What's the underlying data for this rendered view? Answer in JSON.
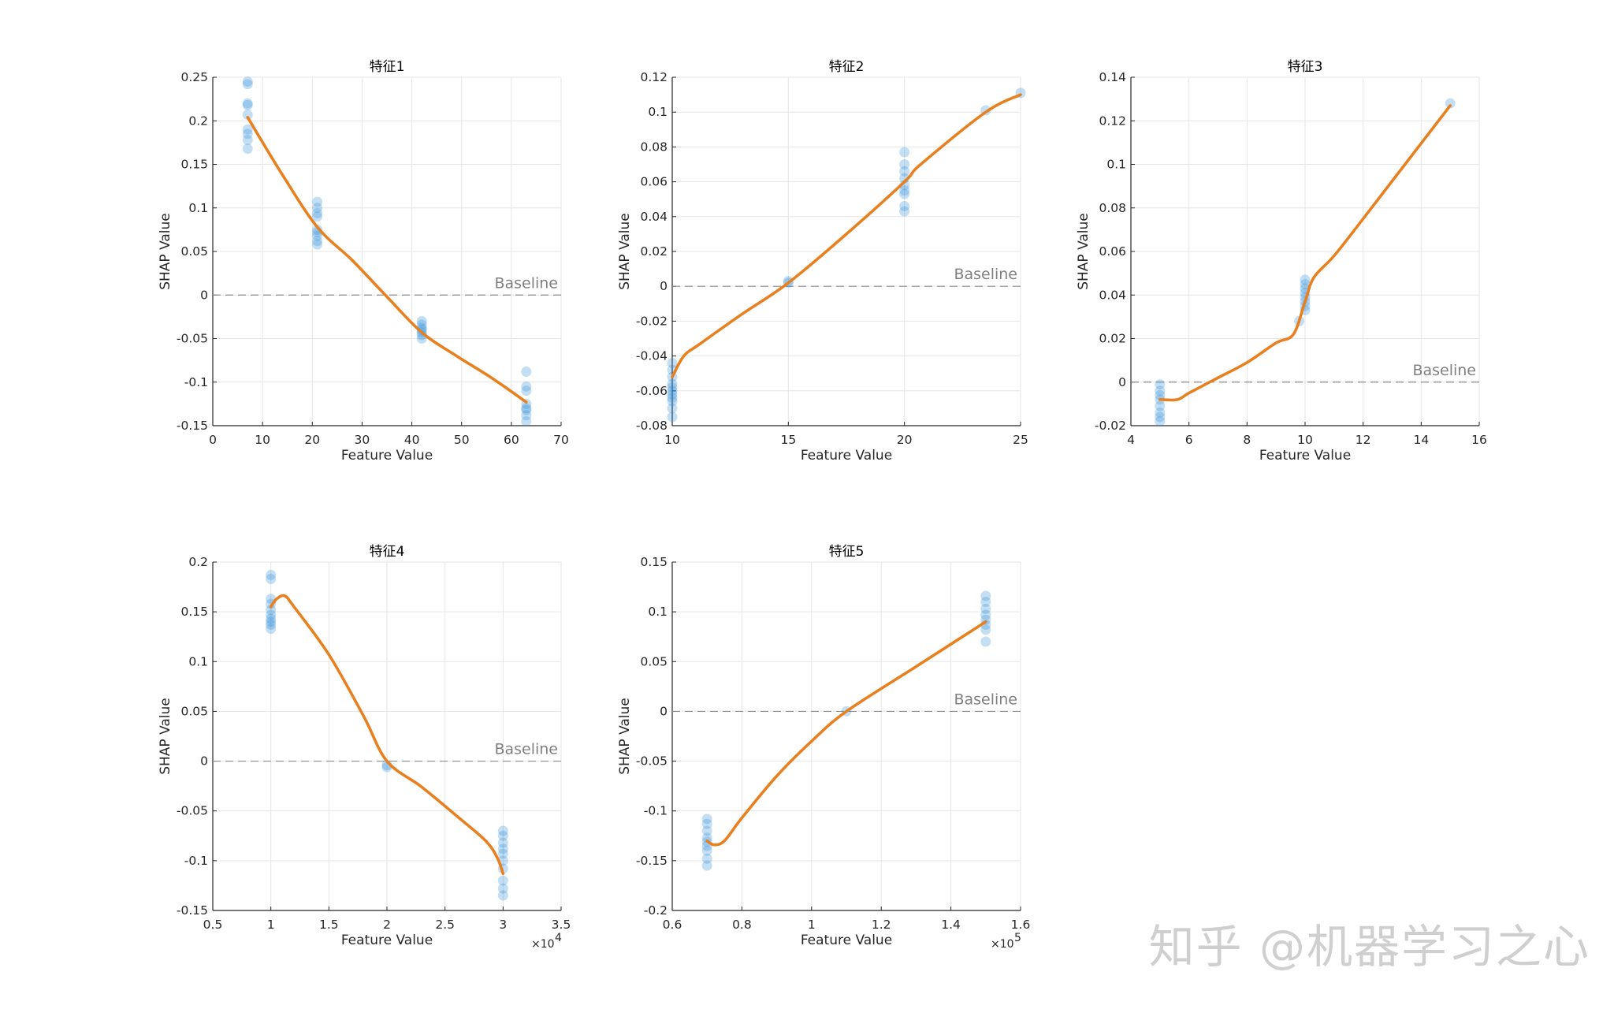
{
  "chart_data": [
    {
      "type": "scatter",
      "title": "特征1",
      "xlabel": "Feature Value",
      "ylabel": "SHAP Value",
      "xlim": [
        0,
        70
      ],
      "ylim": [
        -0.15,
        0.25
      ],
      "xticks": [
        "0",
        "10",
        "20",
        "30",
        "40",
        "50",
        "60",
        "70"
      ],
      "yticks": [
        "-0.15",
        "-0.1",
        "-0.05",
        "0",
        "0.05",
        "0.1",
        "0.15",
        "0.2",
        "0.25"
      ],
      "baseline_label": "Baseline",
      "x_exponent": "",
      "points": [
        [
          7,
          0.245
        ],
        [
          7,
          0.242
        ],
        [
          7,
          0.22
        ],
        [
          7,
          0.218
        ],
        [
          7,
          0.207
        ],
        [
          7,
          0.19
        ],
        [
          7,
          0.185
        ],
        [
          7,
          0.178
        ],
        [
          7,
          0.168
        ],
        [
          21,
          0.107
        ],
        [
          21,
          0.1
        ],
        [
          21,
          0.094
        ],
        [
          21,
          0.09
        ],
        [
          21,
          0.075
        ],
        [
          21,
          0.072
        ],
        [
          21,
          0.068
        ],
        [
          21,
          0.062
        ],
        [
          21,
          0.058
        ],
        [
          42,
          -0.03
        ],
        [
          42,
          -0.034
        ],
        [
          42,
          -0.038
        ],
        [
          42,
          -0.04
        ],
        [
          42,
          -0.043
        ],
        [
          42,
          -0.046
        ],
        [
          42,
          -0.05
        ],
        [
          63,
          -0.088
        ],
        [
          63,
          -0.105
        ],
        [
          63,
          -0.11
        ],
        [
          63,
          -0.125
        ],
        [
          63,
          -0.13
        ],
        [
          63,
          -0.132
        ],
        [
          63,
          -0.138
        ],
        [
          63,
          -0.145
        ]
      ],
      "fit": [
        [
          7,
          0.204
        ],
        [
          14,
          0.138
        ],
        [
          21,
          0.078
        ],
        [
          28,
          0.04
        ],
        [
          35,
          -0.002
        ],
        [
          42,
          -0.043
        ],
        [
          49,
          -0.07
        ],
        [
          56,
          -0.095
        ],
        [
          63,
          -0.123
        ]
      ]
    },
    {
      "type": "scatter",
      "title": "特征2",
      "xlabel": "Feature Value",
      "ylabel": "SHAP Value",
      "xlim": [
        10,
        25
      ],
      "ylim": [
        -0.08,
        0.12
      ],
      "xticks": [
        "10",
        "15",
        "20",
        "25"
      ],
      "yticks": [
        "-0.08",
        "-0.06",
        "-0.04",
        "-0.02",
        "0",
        "0.02",
        "0.04",
        "0.06",
        "0.08",
        "0.1",
        "0.12"
      ],
      "baseline_label": "Baseline",
      "x_exponent": "",
      "points": [
        [
          10,
          -0.044
        ],
        [
          10,
          -0.048
        ],
        [
          10,
          -0.052
        ],
        [
          10,
          -0.056
        ],
        [
          10,
          -0.058
        ],
        [
          10,
          -0.06
        ],
        [
          10,
          -0.062
        ],
        [
          10,
          -0.064
        ],
        [
          10,
          -0.066
        ],
        [
          10,
          -0.07
        ],
        [
          10,
          -0.075
        ],
        [
          15,
          0.003
        ],
        [
          15,
          0.002
        ],
        [
          20,
          0.077
        ],
        [
          20,
          0.07
        ],
        [
          20,
          0.066
        ],
        [
          20,
          0.062
        ],
        [
          20,
          0.058
        ],
        [
          20,
          0.055
        ],
        [
          20,
          0.053
        ],
        [
          20,
          0.046
        ],
        [
          20,
          0.043
        ],
        [
          23.5,
          0.101
        ],
        [
          25,
          0.111
        ]
      ],
      "fit": [
        [
          10,
          -0.052
        ],
        [
          10.5,
          -0.04
        ],
        [
          11.2,
          -0.033
        ],
        [
          13,
          -0.016
        ],
        [
          15,
          0.002
        ],
        [
          17.5,
          0.03
        ],
        [
          20,
          0.06
        ],
        [
          20.7,
          0.07
        ],
        [
          23.5,
          0.1
        ],
        [
          25,
          0.11
        ]
      ]
    },
    {
      "type": "scatter",
      "title": "特征3",
      "xlabel": "Feature Value",
      "ylabel": "SHAP Value",
      "xlim": [
        4,
        16
      ],
      "ylim": [
        -0.02,
        0.14
      ],
      "xticks": [
        "4",
        "6",
        "8",
        "10",
        "12",
        "14",
        "16"
      ],
      "yticks": [
        "-0.02",
        "0",
        "0.02",
        "0.04",
        "0.06",
        "0.08",
        "0.1",
        "0.12",
        "0.14"
      ],
      "baseline_label": "Baseline",
      "x_exponent": "",
      "points": [
        [
          5,
          -0.001
        ],
        [
          5,
          -0.004
        ],
        [
          5,
          -0.006
        ],
        [
          5,
          -0.008
        ],
        [
          5,
          -0.011
        ],
        [
          5,
          -0.014
        ],
        [
          5,
          -0.016
        ],
        [
          5,
          -0.018
        ],
        [
          10,
          0.047
        ],
        [
          10,
          0.045
        ],
        [
          10,
          0.043
        ],
        [
          10,
          0.041
        ],
        [
          10,
          0.039
        ],
        [
          10,
          0.037
        ],
        [
          10,
          0.035
        ],
        [
          10,
          0.033
        ],
        [
          9.8,
          0.028
        ],
        [
          15,
          0.128
        ]
      ],
      "fit": [
        [
          5,
          -0.008
        ],
        [
          5.6,
          -0.008
        ],
        [
          6,
          -0.005
        ],
        [
          7,
          0.002
        ],
        [
          8,
          0.009
        ],
        [
          9,
          0.018
        ],
        [
          9.6,
          0.022
        ],
        [
          10,
          0.037
        ],
        [
          10.3,
          0.048
        ],
        [
          11,
          0.058
        ],
        [
          12,
          0.075
        ],
        [
          15,
          0.127
        ]
      ]
    },
    {
      "type": "scatter",
      "title": "特征4",
      "xlabel": "Feature Value",
      "ylabel": "SHAP Value",
      "xlim": [
        0.5,
        3.5
      ],
      "ylim": [
        -0.15,
        0.2
      ],
      "xticks": [
        "0.5",
        "1",
        "1.5",
        "2",
        "2.5",
        "3",
        "3.5"
      ],
      "yticks": [
        "-0.15",
        "-0.1",
        "-0.05",
        "0",
        "0.05",
        "0.1",
        "0.15",
        "0.2"
      ],
      "baseline_label": "Baseline",
      "x_exponent": "4",
      "points": [
        [
          1,
          0.187
        ],
        [
          1,
          0.183
        ],
        [
          1,
          0.163
        ],
        [
          1,
          0.158
        ],
        [
          1,
          0.152
        ],
        [
          1,
          0.147
        ],
        [
          1,
          0.143
        ],
        [
          1,
          0.14
        ],
        [
          1,
          0.137
        ],
        [
          1,
          0.133
        ],
        [
          2,
          -0.004
        ],
        [
          2,
          -0.006
        ],
        [
          3,
          -0.07
        ],
        [
          3,
          -0.075
        ],
        [
          3,
          -0.082
        ],
        [
          3,
          -0.088
        ],
        [
          3,
          -0.093
        ],
        [
          3,
          -0.1
        ],
        [
          3,
          -0.108
        ],
        [
          3,
          -0.12
        ],
        [
          3,
          -0.128
        ],
        [
          3,
          -0.135
        ]
      ],
      "fit": [
        [
          1,
          0.155
        ],
        [
          1.05,
          0.163
        ],
        [
          1.12,
          0.166
        ],
        [
          1.2,
          0.155
        ],
        [
          1.5,
          0.107
        ],
        [
          1.8,
          0.045
        ],
        [
          2,
          0.0
        ],
        [
          2.3,
          -0.026
        ],
        [
          2.6,
          -0.055
        ],
        [
          2.85,
          -0.08
        ],
        [
          2.95,
          -0.097
        ],
        [
          3,
          -0.113
        ]
      ]
    },
    {
      "type": "scatter",
      "title": "特征5",
      "xlabel": "Feature Value",
      "ylabel": "SHAP Value",
      "xlim": [
        0.6,
        1.6
      ],
      "ylim": [
        -0.2,
        0.15
      ],
      "xticks": [
        "0.6",
        "0.8",
        "1",
        "1.2",
        "1.4",
        "1.6"
      ],
      "yticks": [
        "-0.2",
        "-0.15",
        "-0.1",
        "-0.05",
        "0",
        "0.05",
        "0.1",
        "0.15"
      ],
      "baseline_label": "Baseline",
      "x_exponent": "5",
      "points": [
        [
          0.7,
          -0.108
        ],
        [
          0.7,
          -0.113
        ],
        [
          0.7,
          -0.12
        ],
        [
          0.7,
          -0.127
        ],
        [
          0.7,
          -0.131
        ],
        [
          0.7,
          -0.135
        ],
        [
          0.7,
          -0.14
        ],
        [
          0.7,
          -0.148
        ],
        [
          0.7,
          -0.155
        ],
        [
          1.1,
          0.0
        ],
        [
          1.5,
          0.116
        ],
        [
          1.5,
          0.11
        ],
        [
          1.5,
          0.103
        ],
        [
          1.5,
          0.097
        ],
        [
          1.5,
          0.092
        ],
        [
          1.5,
          0.087
        ],
        [
          1.5,
          0.082
        ],
        [
          1.5,
          0.07
        ]
      ],
      "fit": [
        [
          0.7,
          -0.13
        ],
        [
          0.72,
          -0.134
        ],
        [
          0.75,
          -0.13
        ],
        [
          0.8,
          -0.107
        ],
        [
          0.9,
          -0.065
        ],
        [
          1.0,
          -0.03
        ],
        [
          1.1,
          0.0
        ],
        [
          1.3,
          0.045
        ],
        [
          1.5,
          0.09
        ]
      ]
    }
  ],
  "watermark": "知乎 @机器学习之心"
}
